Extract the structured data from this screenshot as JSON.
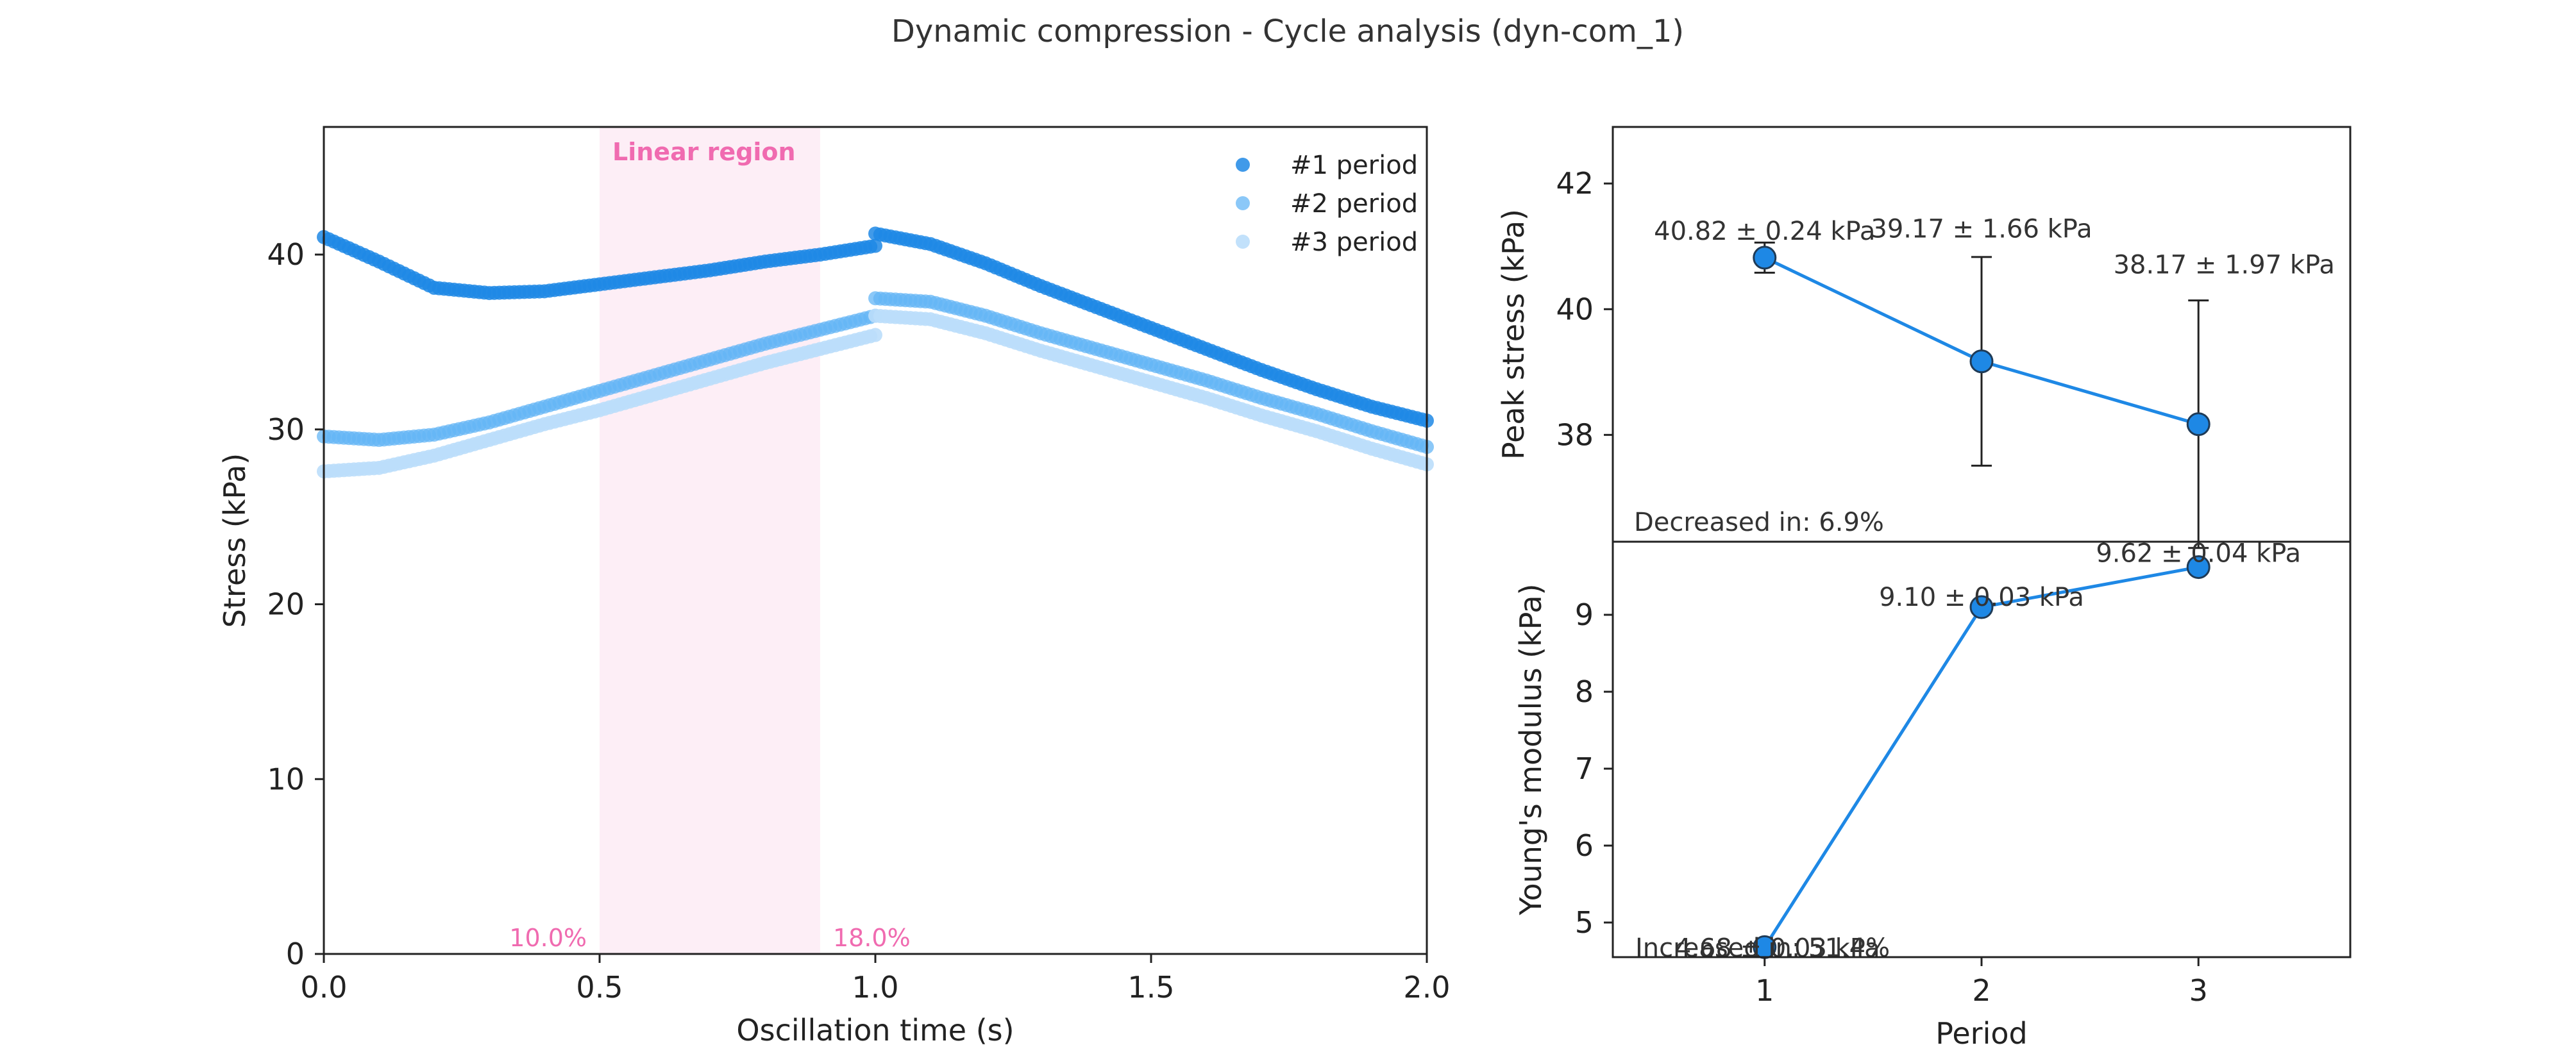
{
  "figure": {
    "title": "Dynamic compression - Cycle analysis (dyn-com_1)"
  },
  "colors": {
    "period1": "#1e88e5",
    "period2": "#64b5f6",
    "period3": "#bbdefb",
    "highlight_fill": "#fdeef6",
    "highlight_text": "#f06bb0",
    "axis": "#222222",
    "marker_edge": "#1f3b57"
  },
  "chart_data": [
    {
      "type": "scatter",
      "xlabel": "Oscillation time (s)",
      "ylabel": "Stress (kPa)",
      "xlim": [
        0,
        2
      ],
      "ylim": [
        0,
        47.3
      ],
      "xticks": [
        "0.0",
        "0.5",
        "1.0",
        "1.5",
        "2.0"
      ],
      "yticks": [
        "0",
        "10",
        "20",
        "30",
        "40"
      ],
      "legend_position": "top-right",
      "highlight_region": {
        "label": "Linear region",
        "x_start": 0.5,
        "x_end": 0.9,
        "start_label": "10.0%",
        "end_label": "18.0%"
      },
      "series": [
        {
          "name": "#1 period",
          "color_key": "period1",
          "alpha": 0.85,
          "segments": [
            {
              "x": [
                0.0,
                0.1,
                0.2,
                0.3,
                0.4,
                0.5,
                0.6,
                0.7,
                0.8,
                0.9,
                1.0
              ],
              "y": [
                41.0,
                39.6,
                38.1,
                37.8,
                37.9,
                38.3,
                38.7,
                39.1,
                39.6,
                40.0,
                40.5
              ]
            },
            {
              "x": [
                1.0,
                1.1,
                1.2,
                1.3,
                1.4,
                1.5,
                1.6,
                1.7,
                1.8,
                1.9,
                2.0
              ],
              "y": [
                41.2,
                40.6,
                39.5,
                38.2,
                37.0,
                35.8,
                34.6,
                33.4,
                32.3,
                31.3,
                30.5
              ]
            }
          ]
        },
        {
          "name": "#2 period",
          "color_key": "period2",
          "alpha": 0.75,
          "segments": [
            {
              "x": [
                0.0,
                0.1,
                0.2,
                0.3,
                0.4,
                0.5,
                0.6,
                0.7,
                0.8,
                0.9,
                1.0
              ],
              "y": [
                29.6,
                29.4,
                29.7,
                30.4,
                31.3,
                32.2,
                33.1,
                34.0,
                34.9,
                35.7,
                36.5
              ]
            },
            {
              "x": [
                1.0,
                1.1,
                1.2,
                1.3,
                1.4,
                1.5,
                1.6,
                1.7,
                1.8,
                1.9,
                2.0
              ],
              "y": [
                37.5,
                37.3,
                36.5,
                35.5,
                34.6,
                33.7,
                32.8,
                31.8,
                30.9,
                29.9,
                29.0
              ]
            }
          ]
        },
        {
          "name": "#3 period",
          "color_key": "period3",
          "alpha": 0.9,
          "segments": [
            {
              "x": [
                0.0,
                0.1,
                0.2,
                0.3,
                0.4,
                0.5,
                0.6,
                0.7,
                0.8,
                0.9,
                1.0
              ],
              "y": [
                27.6,
                27.8,
                28.5,
                29.4,
                30.3,
                31.1,
                32.0,
                32.9,
                33.8,
                34.6,
                35.4
              ]
            },
            {
              "x": [
                1.0,
                1.1,
                1.2,
                1.3,
                1.4,
                1.5,
                1.6,
                1.7,
                1.8,
                1.9,
                2.0
              ],
              "y": [
                36.5,
                36.3,
                35.5,
                34.5,
                33.6,
                32.7,
                31.8,
                30.8,
                29.9,
                28.9,
                28.0
              ]
            }
          ]
        }
      ]
    },
    {
      "type": "line",
      "xlabel": "",
      "ylabel": "Peak stress (kPa)",
      "x": [
        1,
        2,
        3
      ],
      "xlim": [
        0.3,
        3.7
      ],
      "ylim": [
        36.3,
        42.9
      ],
      "yticks": [
        "38",
        "40",
        "42"
      ],
      "values": [
        40.82,
        39.17,
        38.17
      ],
      "errors": [
        0.24,
        1.66,
        1.97
      ],
      "point_labels": [
        "40.82 ± 0.24 kPa",
        "39.17 ± 1.66 kPa",
        "38.17 ± 1.97 kPa"
      ],
      "annotation": "Decreased in: 6.9%"
    },
    {
      "type": "line",
      "xlabel": "Period",
      "ylabel": "Young's modulus (kPa)",
      "x": [
        1,
        2,
        3
      ],
      "xticks": [
        "1",
        "2",
        "3"
      ],
      "xlim": [
        0.3,
        3.7
      ],
      "ylim": [
        4.55,
        9.95
      ],
      "yticks": [
        "5",
        "6",
        "7",
        "8",
        "9"
      ],
      "values": [
        4.68,
        9.1,
        9.62
      ],
      "errors": [
        0.03,
        0.03,
        0.04
      ],
      "point_labels": [
        "4.68 ± 0.03 kPa",
        "9.10 ± 0.03 kPa",
        "9.62 ± 0.04 kPa"
      ],
      "annotation": "Increased in: 51.4%"
    }
  ]
}
